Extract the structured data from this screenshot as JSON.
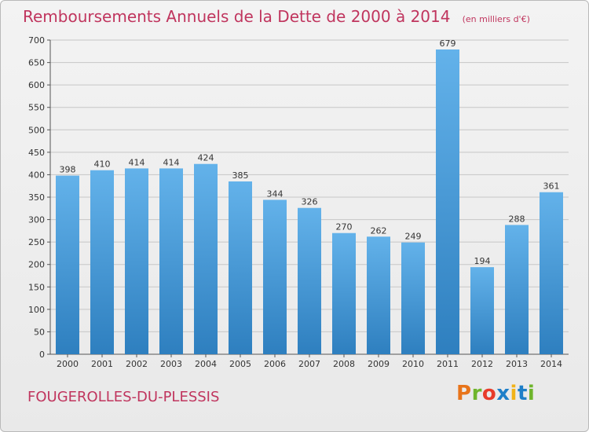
{
  "chart_data": {
    "type": "bar",
    "title": "Remboursements Annuels de la Dette de 2000 à 2014",
    "unit": "(en milliers d'€)",
    "categories": [
      "2000",
      "2001",
      "2002",
      "2003",
      "2004",
      "2005",
      "2006",
      "2007",
      "2008",
      "2009",
      "2010",
      "2011",
      "2012",
      "2013",
      "2014"
    ],
    "values": [
      398,
      410,
      414,
      414,
      424,
      385,
      344,
      326,
      270,
      262,
      249,
      679,
      194,
      288,
      361
    ],
    "ylim": [
      0,
      700
    ],
    "yticks": [
      0,
      50,
      100,
      150,
      200,
      250,
      300,
      350,
      400,
      450,
      500,
      550,
      600,
      650,
      700
    ],
    "grid": true,
    "bar_color_top": "#63b2ea",
    "bar_color_bottom": "#2e7fbf"
  },
  "location": "FOUGEROLLES-DU-PLESSIS",
  "logo": {
    "p": "P",
    "r": "r",
    "o": "o",
    "x": "x",
    "i": "i",
    "t": "t",
    "i2": "i"
  }
}
